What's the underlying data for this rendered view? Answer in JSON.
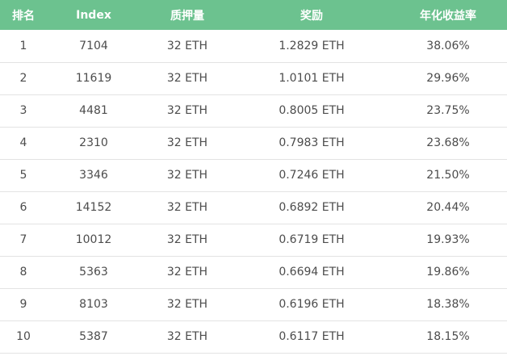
{
  "colors": {
    "header_bg": "#6cc28f",
    "header_text": "#ffffff",
    "row_text": "#4c4c4c",
    "row_border": "#e3e3e3"
  },
  "table": {
    "headers": {
      "rank": "排名",
      "index": "Index",
      "stake": "质押量",
      "reward": "奖励",
      "apr": "年化收益率"
    },
    "rows": [
      {
        "rank": "1",
        "index": "7104",
        "stake": "32 ETH",
        "reward": "1.2829 ETH",
        "apr": "38.06%"
      },
      {
        "rank": "2",
        "index": "11619",
        "stake": "32 ETH",
        "reward": "1.0101 ETH",
        "apr": "29.96%"
      },
      {
        "rank": "3",
        "index": "4481",
        "stake": "32 ETH",
        "reward": "0.8005 ETH",
        "apr": "23.75%"
      },
      {
        "rank": "4",
        "index": "2310",
        "stake": "32 ETH",
        "reward": "0.7983 ETH",
        "apr": "23.68%"
      },
      {
        "rank": "5",
        "index": "3346",
        "stake": "32 ETH",
        "reward": "0.7246 ETH",
        "apr": "21.50%"
      },
      {
        "rank": "6",
        "index": "14152",
        "stake": "32 ETH",
        "reward": "0.6892 ETH",
        "apr": "20.44%"
      },
      {
        "rank": "7",
        "index": "10012",
        "stake": "32 ETH",
        "reward": "0.6719 ETH",
        "apr": "19.93%"
      },
      {
        "rank": "8",
        "index": "5363",
        "stake": "32 ETH",
        "reward": "0.6694 ETH",
        "apr": "19.86%"
      },
      {
        "rank": "9",
        "index": "8103",
        "stake": "32 ETH",
        "reward": "0.6196 ETH",
        "apr": "18.38%"
      },
      {
        "rank": "10",
        "index": "5387",
        "stake": "32 ETH",
        "reward": "0.6117 ETH",
        "apr": "18.15%"
      }
    ]
  }
}
